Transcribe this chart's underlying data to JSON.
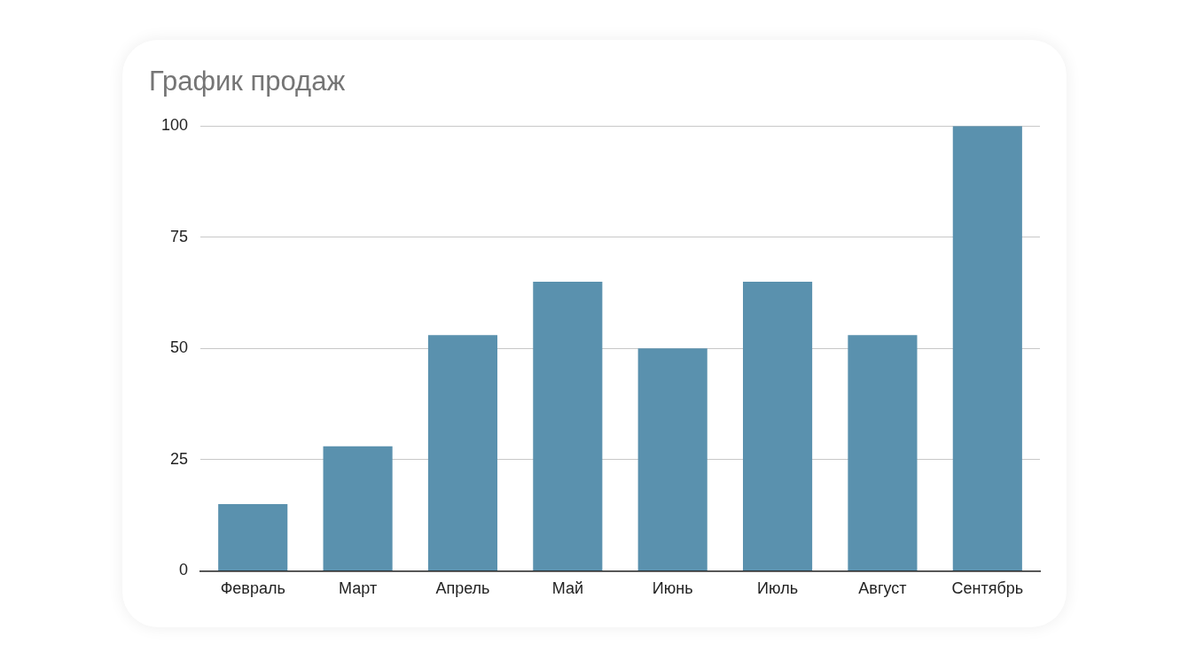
{
  "chart_data": {
    "type": "bar",
    "title": "График продаж",
    "categories": [
      "Февраль",
      "Март",
      "Апрель",
      "Май",
      "Июнь",
      "Июль",
      "Август",
      "Сентябрь"
    ],
    "values": [
      15,
      28,
      53,
      65,
      50,
      65,
      53,
      100
    ],
    "color": "#5a91ae",
    "ylim": [
      0,
      100
    ],
    "yticks": [
      0,
      25,
      50,
      75,
      100
    ],
    "grid": "y",
    "legend": false
  }
}
